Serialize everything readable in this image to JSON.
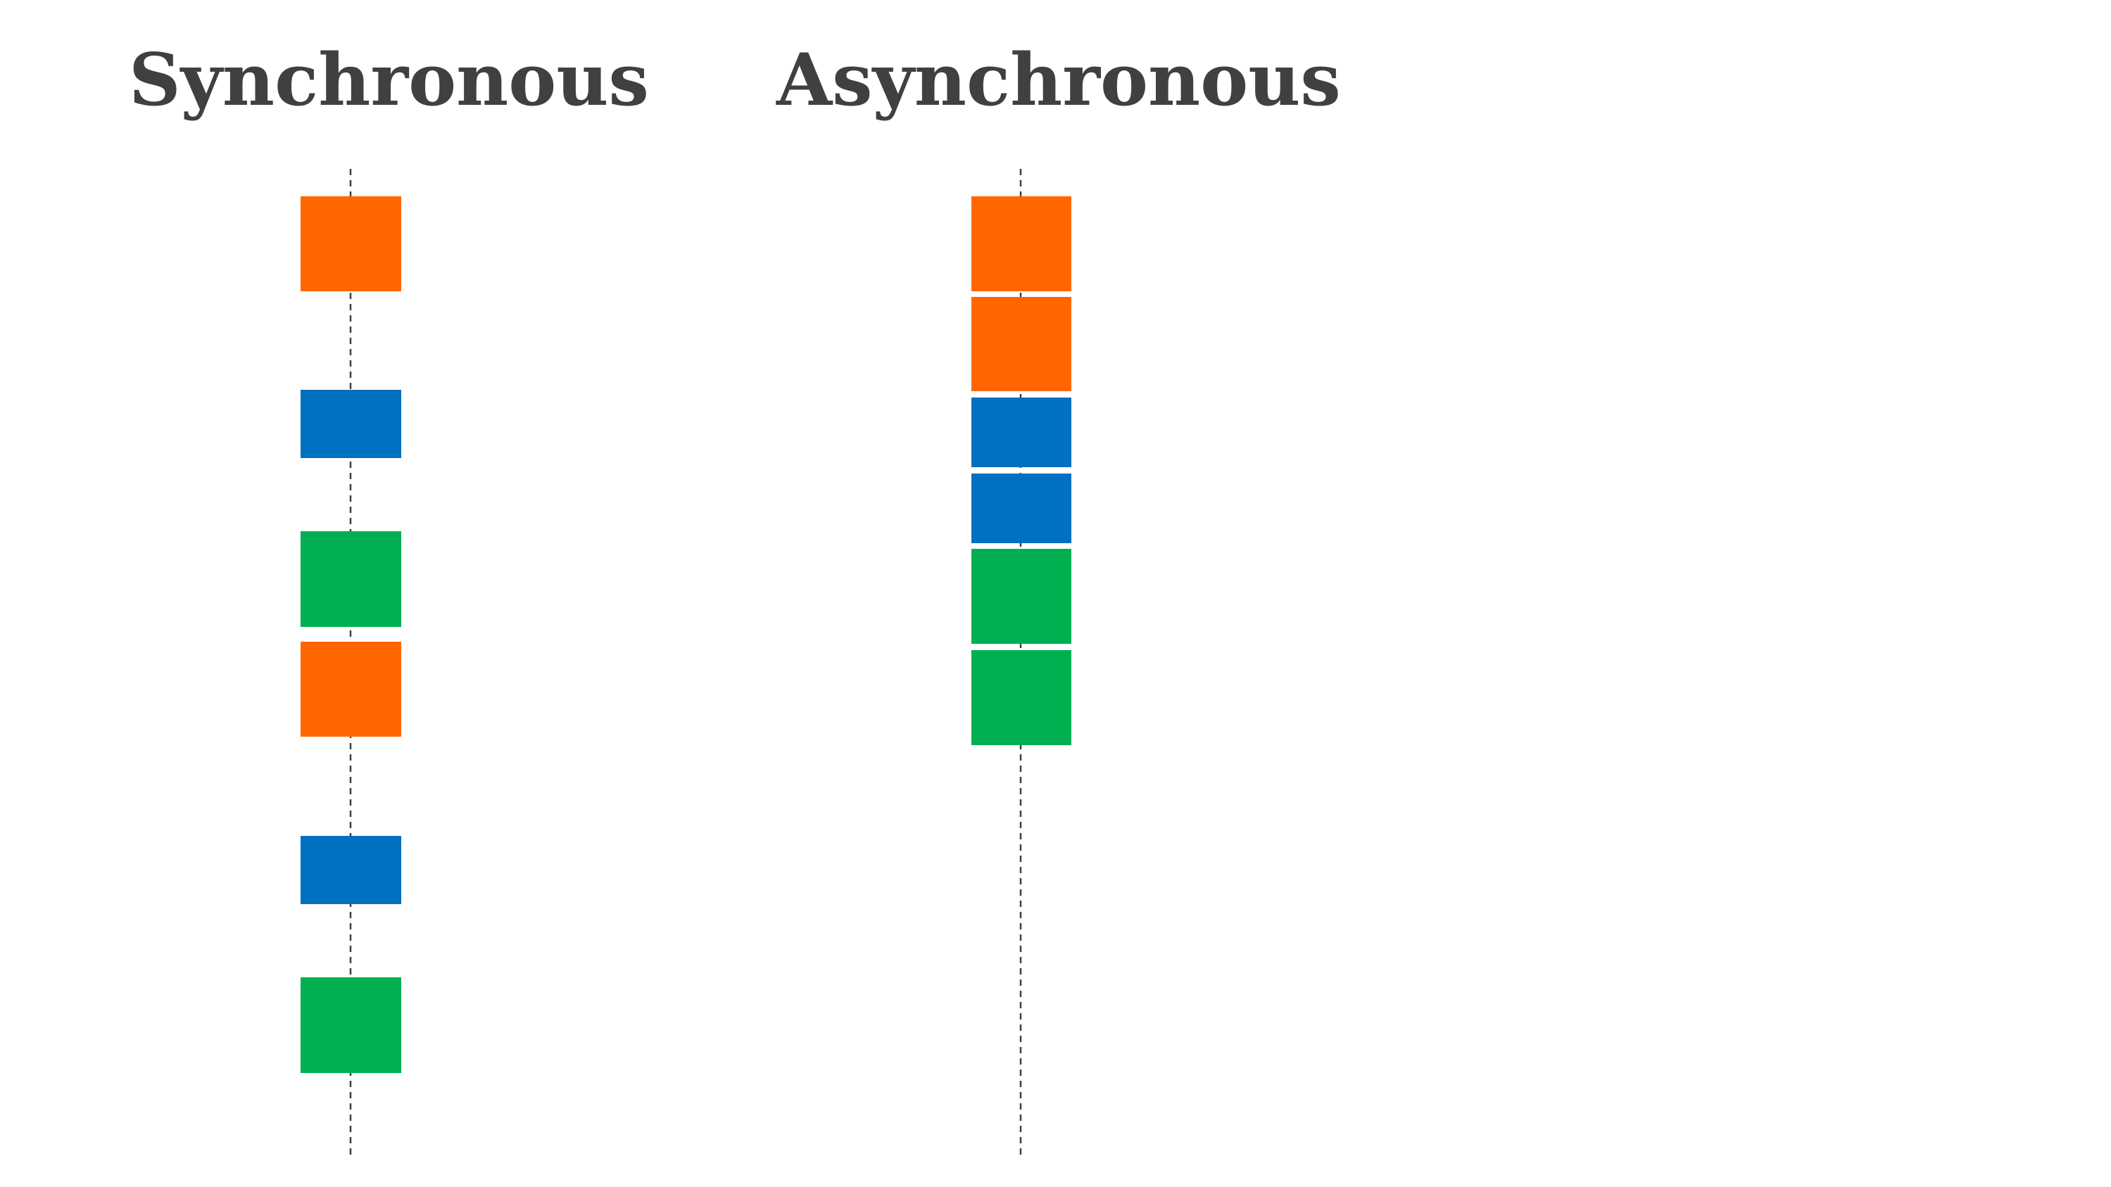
{
  "titles": {
    "sync": "Synchronous",
    "async": "Asynchronous"
  },
  "colors": {
    "orange": "#FF6600",
    "blue": "#0070C0",
    "green": "#00B050",
    "timeline": "#404040",
    "title": "#404040"
  },
  "columns": {
    "sync": {
      "blocks": [
        {
          "color": "orange"
        },
        {
          "color": "blue"
        },
        {
          "color": "green"
        },
        {
          "color": "orange"
        },
        {
          "color": "blue"
        },
        {
          "color": "green"
        }
      ]
    },
    "async": {
      "blocks": [
        {
          "color": "orange"
        },
        {
          "color": "orange"
        },
        {
          "color": "blue"
        },
        {
          "color": "blue"
        },
        {
          "color": "green"
        },
        {
          "color": "green"
        }
      ]
    }
  }
}
